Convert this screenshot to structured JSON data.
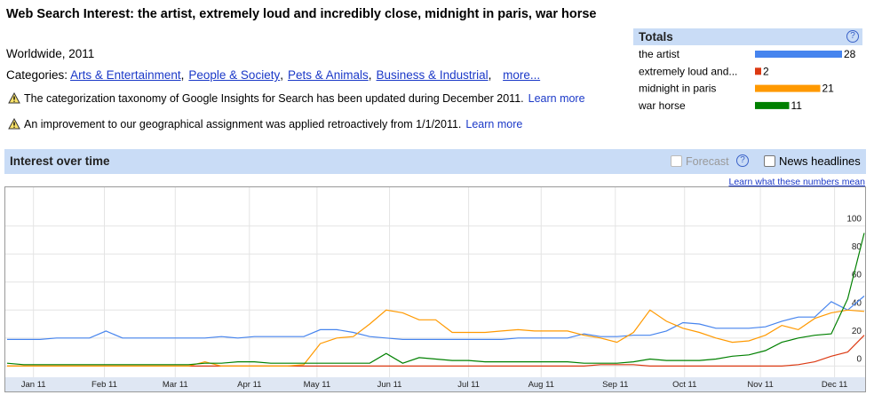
{
  "header": {
    "title": "Web Search Interest: the artist, extremely loud and incredibly close, midnight in paris, war horse",
    "subtitle": "Worldwide, 2011",
    "categories_label": "Categories:",
    "categories": [
      "Arts & Entertainment",
      "People & Society",
      "Pets & Animals",
      "Business & Industrial"
    ],
    "more": "more..."
  },
  "notices": [
    {
      "text": "The categorization taxonomy of Google Insights for Search has been updated during December 2011.",
      "link": "Learn more"
    },
    {
      "text": "An improvement to our geographical assignment was applied retroactively from 1/1/2011.",
      "link": "Learn more"
    }
  ],
  "totals": {
    "title": "Totals",
    "help": "?",
    "xlim": [
      0,
      28
    ],
    "rows": [
      {
        "name": "the artist",
        "value": 28,
        "color": "#4684ee"
      },
      {
        "name": "extremely loud and...",
        "value": 2,
        "color": "#dc3912"
      },
      {
        "name": "midnight in paris",
        "value": 21,
        "color": "#ff9900"
      },
      {
        "name": "war horse",
        "value": 11,
        "color": "#008000"
      }
    ]
  },
  "panel": {
    "title": "Interest over time",
    "forecast": "Forecast",
    "help": "?",
    "news": "News headlines",
    "learn": "Learn what these numbers mean"
  },
  "chart_data": {
    "type": "line",
    "x": [
      0,
      1,
      2,
      3,
      4,
      5,
      6,
      7,
      8,
      9,
      10,
      11,
      12,
      13,
      14,
      15,
      16,
      17,
      18,
      19,
      20,
      21,
      22,
      23,
      24,
      25,
      26,
      27,
      28,
      29,
      30,
      31,
      32,
      33,
      34,
      35,
      36,
      37,
      38,
      39,
      40,
      41,
      42,
      43,
      44,
      45,
      46,
      47,
      48,
      49,
      50,
      51,
      52
    ],
    "xlim": [
      0,
      52
    ],
    "xticks": [
      {
        "value": 1.6,
        "label": "Jan 11"
      },
      {
        "value": 5.9,
        "label": "Feb 11"
      },
      {
        "value": 10.2,
        "label": "Mar 11"
      },
      {
        "value": 14.7,
        "label": "Apr 11"
      },
      {
        "value": 18.8,
        "label": "May 11"
      },
      {
        "value": 23.2,
        "label": "Jun 11"
      },
      {
        "value": 28.0,
        "label": "Jul 11"
      },
      {
        "value": 32.4,
        "label": "Aug 11"
      },
      {
        "value": 36.9,
        "label": "Sep 11"
      },
      {
        "value": 41.1,
        "label": "Oct 11"
      },
      {
        "value": 45.7,
        "label": "Nov 11"
      },
      {
        "value": 50.2,
        "label": "Dec 11"
      }
    ],
    "ylim": [
      -8,
      127
    ],
    "yticks": [
      0,
      20,
      40,
      60,
      80,
      100
    ],
    "grid": true,
    "series": [
      {
        "name": "the artist",
        "color": "#4684ee",
        "values": [
          19,
          19,
          19,
          20,
          20,
          20,
          25,
          20,
          20,
          20,
          20,
          20,
          20,
          21,
          20,
          21,
          21,
          21,
          21,
          26,
          26,
          24,
          21,
          20,
          19,
          19,
          19,
          19,
          19,
          19,
          19,
          20,
          20,
          20,
          20,
          23,
          21,
          21,
          22,
          22,
          25,
          31,
          30,
          27,
          27,
          27,
          28,
          32,
          35,
          35,
          46,
          40,
          50
        ]
      },
      {
        "name": "extremely loud and...",
        "color": "#dc3912",
        "values": [
          0,
          0,
          0,
          0,
          0,
          0,
          0,
          0,
          0,
          0,
          0,
          0,
          0,
          0,
          0,
          0,
          0,
          0,
          0,
          0,
          0,
          0,
          0,
          0,
          0,
          0,
          0,
          0,
          0,
          0,
          0,
          0,
          0,
          0,
          0,
          0,
          1,
          1,
          1,
          0,
          0,
          0,
          0,
          0,
          0,
          0,
          0,
          0,
          1,
          3,
          7,
          10,
          22
        ]
      },
      {
        "name": "midnight in paris",
        "color": "#ff9900",
        "values": [
          0,
          0,
          0,
          0,
          0,
          0,
          0,
          0,
          0,
          0,
          0,
          0,
          3,
          0,
          0,
          0,
          0,
          0,
          1,
          16,
          20,
          21,
          30,
          40,
          38,
          33,
          33,
          24,
          24,
          24,
          25,
          26,
          25,
          25,
          25,
          22,
          20,
          17,
          24,
          40,
          32,
          27,
          24,
          20,
          17,
          18,
          22,
          29,
          26,
          34,
          38,
          40,
          39
        ]
      },
      {
        "name": "war horse",
        "color": "#008000",
        "values": [
          2,
          1,
          1,
          1,
          1,
          1,
          1,
          1,
          1,
          1,
          1,
          1,
          2,
          2,
          3,
          3,
          2,
          2,
          2,
          2,
          2,
          2,
          2,
          9,
          2,
          6,
          5,
          4,
          4,
          3,
          3,
          3,
          3,
          3,
          3,
          2,
          2,
          2,
          3,
          5,
          4,
          4,
          4,
          5,
          7,
          8,
          11,
          17,
          20,
          22,
          23,
          48,
          95
        ]
      }
    ]
  }
}
